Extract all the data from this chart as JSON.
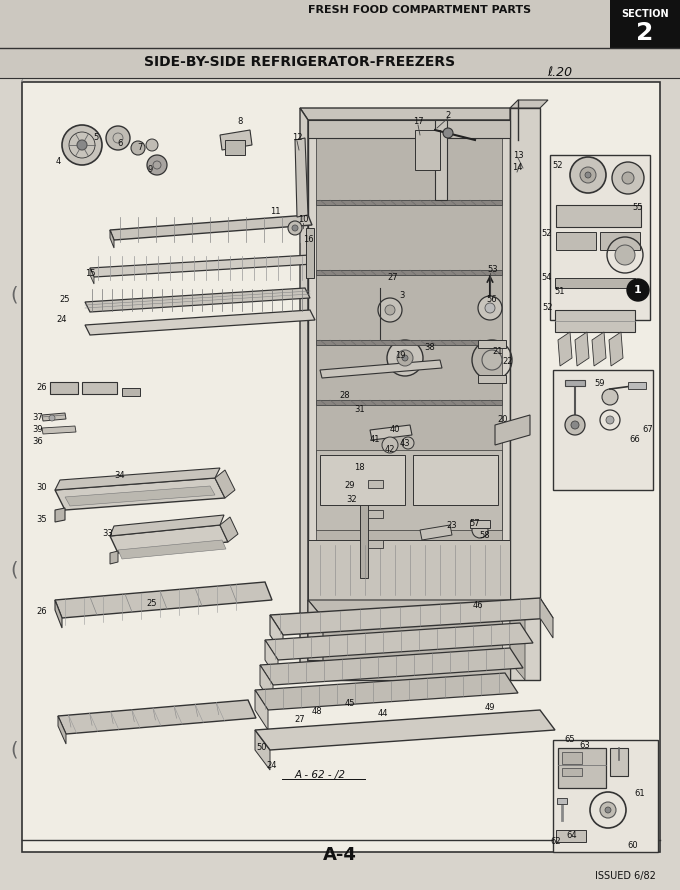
{
  "title_top": "FRESH FOOD COMPARTMENT PARTS",
  "section_label": "SECTION",
  "section_number": "2",
  "subtitle": "SIDE-BY-SIDE REFRIGERATOR-FREEZERS",
  "page_code": "ℓ.20",
  "bottom_center": "A-4",
  "bottom_right": "ISSUED 6/82",
  "sub_diagram_label": "A - 62 - /2",
  "bg_color": "#d8d4cc",
  "inner_bg": "#e8e4dc",
  "box_bg": "#f0ede4",
  "text_color": "#111111",
  "section_bg": "#111111",
  "section_text": "#ffffff",
  "border_color": "#222222",
  "line_color": "#333333",
  "figsize": [
    6.8,
    8.9
  ],
  "dpi": 100
}
